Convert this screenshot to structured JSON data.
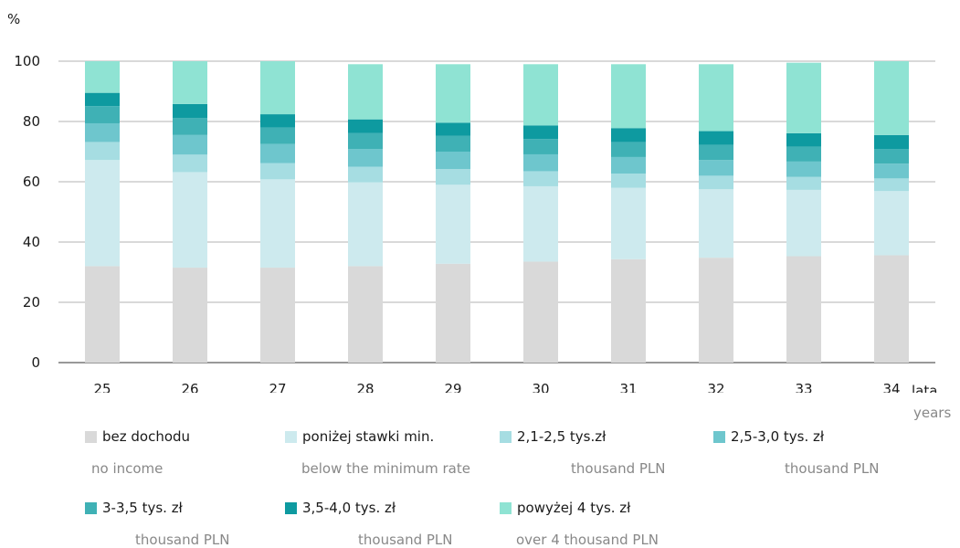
{
  "chart_data": {
    "type": "bar",
    "stacked": true,
    "ylabel": "%",
    "xlabel": "lata",
    "xlabel_sub": "years",
    "ylim": [
      0,
      100
    ],
    "yticks": [
      0,
      20,
      40,
      60,
      80,
      100
    ],
    "grid": true,
    "categories": [
      "25",
      "26",
      "27",
      "28",
      "29",
      "30",
      "31",
      "32",
      "33",
      "34"
    ],
    "series": [
      {
        "name": "bez dochodu",
        "name_en": "no income",
        "color": "#d9d9d9",
        "values": [
          32,
          31.5,
          31.5,
          32,
          32.8,
          33.5,
          34.3,
          34.8,
          35.3,
          35.6
        ]
      },
      {
        "name": "poniżej stawki min.",
        "name_en": "below the minimum rate",
        "color": "#cdeaee",
        "values": [
          35.2,
          31.7,
          29.3,
          27.8,
          26.2,
          25,
          23.7,
          22.7,
          22,
          21.3
        ]
      },
      {
        "name": "2,1-2,5 tys.zł",
        "name_en": "thousand PLN",
        "color": "#a6dde2",
        "values": [
          6,
          5.8,
          5.4,
          5.2,
          5.2,
          5,
          4.7,
          4.5,
          4.3,
          4.2
        ]
      },
      {
        "name": "2,5-3,0 tys. zł",
        "name_en": "thousand PLN",
        "color": "#6ec6cd",
        "values": [
          6.2,
          6.5,
          6.3,
          5.9,
          5.8,
          5.6,
          5.5,
          5.2,
          5.1,
          4.9
        ]
      },
      {
        "name": "3-3,5 tys. zł",
        "name_en": "thousand PLN",
        "color": "#3fb1b5",
        "values": [
          5.7,
          5.7,
          5.5,
          5.3,
          5.2,
          5.1,
          5,
          5,
          4.9,
          4.9
        ]
      },
      {
        "name": "3,5-4,0 tys. zł",
        "name_en": "thousand PLN",
        "color": "#0e9aa0",
        "values": [
          4.4,
          4.6,
          4.4,
          4.5,
          4.4,
          4.5,
          4.6,
          4.6,
          4.5,
          4.6
        ]
      },
      {
        "name": "powyżej 4 tys. zł",
        "name_en": "over 4 thousand PLN",
        "color": "#8fe3d3",
        "values": [
          10.5,
          14.2,
          17.6,
          18.3,
          19.4,
          20.3,
          21.2,
          22.2,
          23.4,
          24.5
        ]
      }
    ]
  }
}
